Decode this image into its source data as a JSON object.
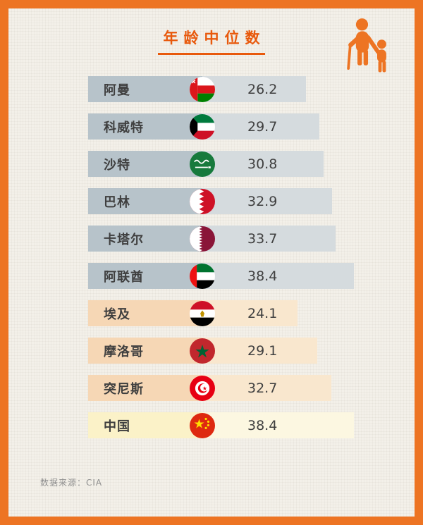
{
  "theme": {
    "accent": "#ed7423",
    "title_color": "#e8590c",
    "background": "#f3f0e9"
  },
  "header": {
    "title": "年龄中位数",
    "icon": "elderly-with-child-icon"
  },
  "chart_data": {
    "type": "bar",
    "orientation": "horizontal",
    "title": "年龄中位数",
    "xlim": [
      0,
      40
    ],
    "grid": false,
    "legend": false,
    "categories": [
      "阿曼",
      "科威特",
      "沙特",
      "巴林",
      "卡塔尔",
      "阿联酋",
      "埃及",
      "摩洛哥",
      "突尼斯",
      "中国"
    ],
    "values": [
      26.2,
      29.7,
      30.8,
      32.9,
      33.7,
      38.4,
      24.1,
      29.1,
      32.7,
      38.4
    ],
    "rows": [
      {
        "label": "阿曼",
        "value": 26.2,
        "value_label": "26.2",
        "flag": "oman",
        "group": "gulf"
      },
      {
        "label": "科威特",
        "value": 29.7,
        "value_label": "29.7",
        "flag": "kuwait",
        "group": "gulf"
      },
      {
        "label": "沙特",
        "value": 30.8,
        "value_label": "30.8",
        "flag": "saudi-arabia",
        "group": "gulf"
      },
      {
        "label": "巴林",
        "value": 32.9,
        "value_label": "32.9",
        "flag": "bahrain",
        "group": "gulf"
      },
      {
        "label": "卡塔尔",
        "value": 33.7,
        "value_label": "33.7",
        "flag": "qatar",
        "group": "gulf"
      },
      {
        "label": "阿联酋",
        "value": 38.4,
        "value_label": "38.4",
        "flag": "uae",
        "group": "gulf"
      },
      {
        "label": "埃及",
        "value": 24.1,
        "value_label": "24.1",
        "flag": "egypt",
        "group": "north_africa"
      },
      {
        "label": "摩洛哥",
        "value": 29.1,
        "value_label": "29.1",
        "flag": "morocco",
        "group": "north_africa"
      },
      {
        "label": "突尼斯",
        "value": 32.7,
        "value_label": "32.7",
        "flag": "tunisia",
        "group": "north_africa"
      },
      {
        "label": "中国",
        "value": 38.4,
        "value_label": "38.4",
        "flag": "china",
        "group": "china"
      }
    ],
    "groups": {
      "gulf": {
        "label_bg": "#b7c3ca",
        "bar_bg": "#d5dbde"
      },
      "north_africa": {
        "label_bg": "#f6d7b5",
        "bar_bg": "#f9e7ce"
      },
      "china": {
        "label_bg": "#fbf2c8",
        "bar_bg": "#fcf7e1"
      }
    }
  },
  "footer": {
    "source": "数据来源：CIA"
  }
}
